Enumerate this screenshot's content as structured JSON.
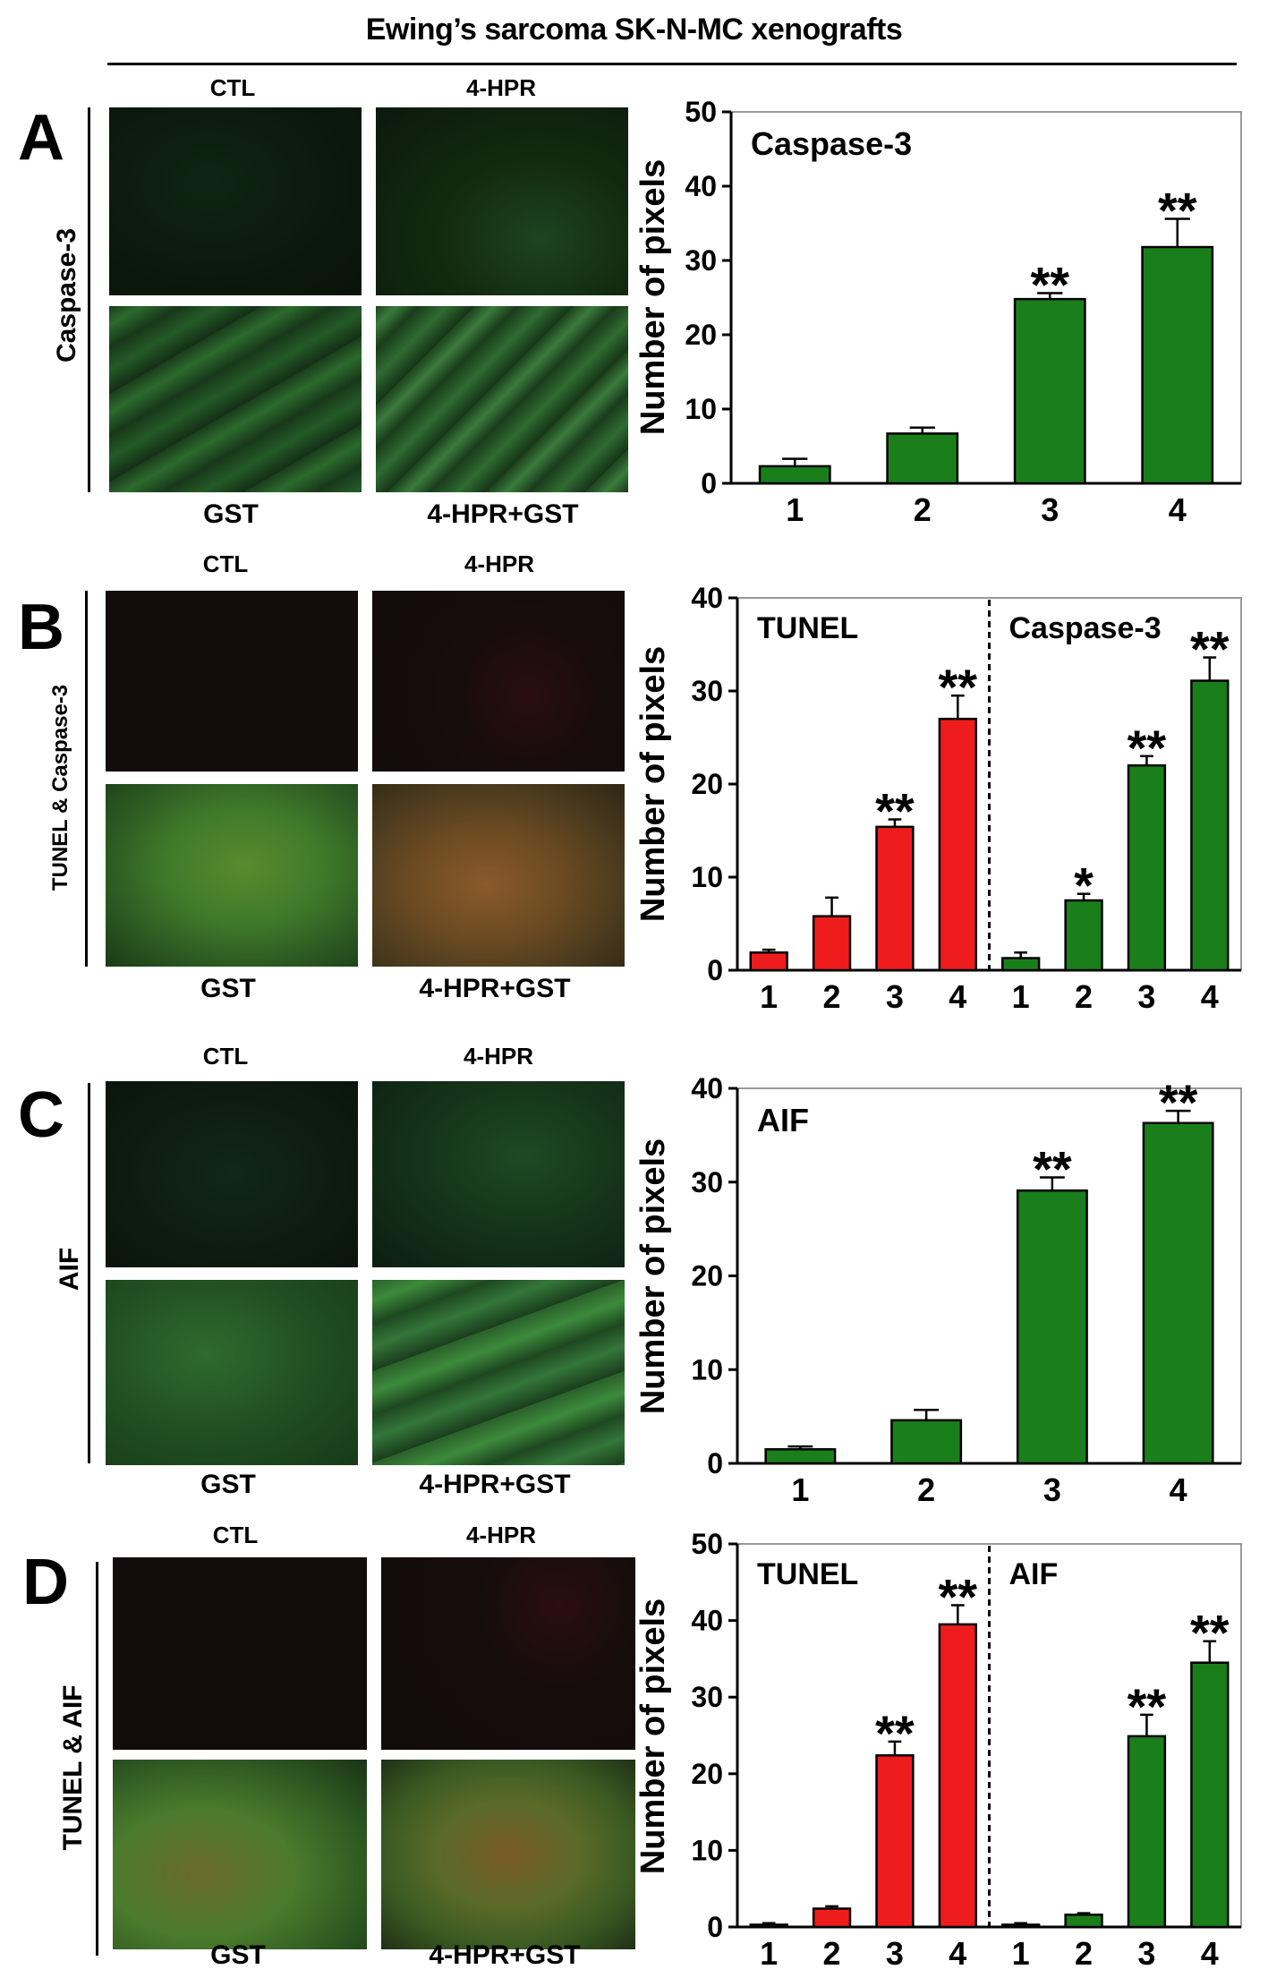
{
  "figure": {
    "title": "Ewing’s sarcoma SK-N-MC xenografts",
    "colors": {
      "green": "#1a7f1a",
      "red": "#ee1c1c",
      "bar_outline": "#000000"
    },
    "micro_labels": {
      "tl": "CTL",
      "tr": "4-HPR",
      "bl": "GST",
      "br": "4-HPR+GST"
    }
  },
  "panels": [
    {
      "letter": "A",
      "side_label": "Caspase-3"
    },
    {
      "letter": "B",
      "side_label": "TUNEL & Caspase-3"
    },
    {
      "letter": "C",
      "side_label": "AIF"
    },
    {
      "letter": "D",
      "side_label": "TUNEL & AIF"
    }
  ],
  "chart_data": [
    {
      "type": "bar",
      "ylabel": "Number of pixels",
      "ylim": [
        0,
        50
      ],
      "yticks": [
        0,
        10,
        20,
        30,
        40,
        50
      ],
      "groups": [
        {
          "title": "Caspase-3",
          "color": "green",
          "categories": [
            "1",
            "2",
            "3",
            "4"
          ],
          "values": [
            2.3,
            6.7,
            24.8,
            31.8
          ],
          "errors": [
            1.0,
            0.8,
            0.8,
            3.8
          ],
          "significance": [
            "",
            "",
            "**",
            "**"
          ]
        }
      ],
      "grid": false
    },
    {
      "type": "bar",
      "ylabel": "Number of pixels",
      "ylim": [
        0,
        40
      ],
      "yticks": [
        0,
        10,
        20,
        30,
        40
      ],
      "groups": [
        {
          "title": "TUNEL",
          "color": "red",
          "categories": [
            "1",
            "2",
            "3",
            "4"
          ],
          "values": [
            1.9,
            5.8,
            15.4,
            27.0
          ],
          "errors": [
            0.3,
            2.0,
            0.8,
            2.5
          ],
          "significance": [
            "",
            "",
            "**",
            "**"
          ]
        },
        {
          "title": "Caspase-3",
          "color": "green",
          "categories": [
            "1",
            "2",
            "3",
            "4"
          ],
          "values": [
            1.3,
            7.5,
            22.0,
            31.1
          ],
          "errors": [
            0.6,
            0.7,
            1.0,
            2.5
          ],
          "significance": [
            "",
            "*",
            "**",
            "**"
          ]
        }
      ],
      "grid": false
    },
    {
      "type": "bar",
      "ylabel": "Number of pixels",
      "ylim": [
        0,
        40
      ],
      "yticks": [
        0,
        10,
        20,
        30,
        40
      ],
      "groups": [
        {
          "title": "AIF",
          "color": "green",
          "categories": [
            "1",
            "2",
            "3",
            "4"
          ],
          "values": [
            1.5,
            4.6,
            29.1,
            36.3
          ],
          "errors": [
            0.3,
            1.1,
            1.4,
            1.3
          ],
          "significance": [
            "",
            "",
            "**",
            "**"
          ]
        }
      ],
      "grid": false
    },
    {
      "type": "bar",
      "ylabel": "Number of pixels",
      "ylim": [
        0,
        50
      ],
      "yticks": [
        0,
        10,
        20,
        30,
        40,
        50
      ],
      "groups": [
        {
          "title": "TUNEL",
          "color": "red",
          "categories": [
            "1",
            "2",
            "3",
            "4"
          ],
          "values": [
            0.3,
            2.4,
            22.4,
            39.5
          ],
          "errors": [
            0.2,
            0.3,
            1.8,
            2.5
          ],
          "significance": [
            "",
            "",
            "**",
            "**"
          ]
        },
        {
          "title": "AIF",
          "color": "green",
          "categories": [
            "1",
            "2",
            "3",
            "4"
          ],
          "values": [
            0.3,
            1.6,
            24.9,
            34.5
          ],
          "errors": [
            0.2,
            0.2,
            2.8,
            2.8
          ],
          "significance": [
            "",
            "",
            "**",
            "**"
          ]
        }
      ],
      "grid": false
    }
  ]
}
